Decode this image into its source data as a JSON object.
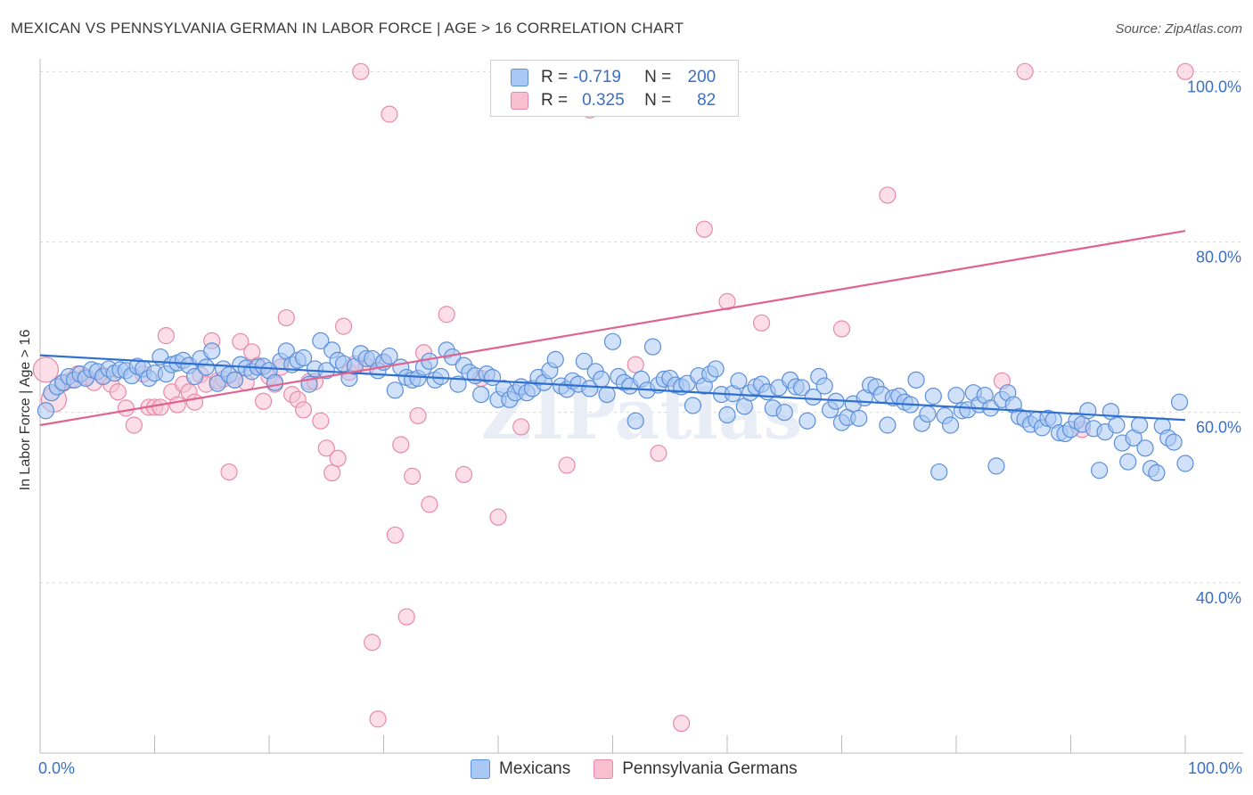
{
  "header": {
    "title": "MEXICAN VS PENNSYLVANIA GERMAN IN LABOR FORCE | AGE > 16 CORRELATION CHART",
    "source": "Source: ZipAtlas.com"
  },
  "legend": {
    "r_label": "R =",
    "n_label": "N =",
    "rows": [
      {
        "r": "-0.719",
        "n": "200",
        "color": "#a9c8f4"
      },
      {
        "r": "0.325",
        "n": "82",
        "color": "#f7bfd0"
      }
    ]
  },
  "colors": {
    "blue_fill": "#a9c8f4",
    "blue_stroke": "#5b8fd8",
    "blue_line": "#2f6fcf",
    "pink_fill": "#f7c3d3",
    "pink_stroke": "#e88aa7",
    "pink_line": "#e0628d",
    "axis_text": "#3b6fc4",
    "grid": "#d8d8d8"
  },
  "chart_data": {
    "type": "scatter",
    "title": "MEXICAN VS PENNSYLVANIA GERMAN IN LABOR FORCE | AGE > 16 CORRELATION CHART",
    "xlabel": "",
    "ylabel": "In Labor Force | Age > 16",
    "x_tick_labels": [
      "0.0%",
      "100.0%"
    ],
    "y_tick_labels": [
      "100.0%",
      "80.0%",
      "60.0%",
      "40.0%"
    ],
    "y_ticks": [
      100,
      80,
      60,
      40
    ],
    "xlim": [
      0,
      100
    ],
    "ylim": [
      20,
      101.5
    ],
    "grid": true,
    "watermark": "ZIPatlas",
    "series": [
      {
        "name": "Mexicans",
        "r": -0.719,
        "n": 200,
        "trend": {
          "x": [
            0,
            100
          ],
          "y": [
            66.7,
            59.1
          ]
        },
        "points": [
          [
            0.5,
            60.2
          ],
          [
            1,
            62.3
          ],
          [
            1.5,
            63.0
          ],
          [
            2,
            63.5
          ],
          [
            2.5,
            64.2
          ],
          [
            3,
            63.8
          ],
          [
            3.5,
            64.5
          ],
          [
            4,
            64.0
          ],
          [
            4.5,
            65.0
          ],
          [
            5,
            64.8
          ],
          [
            5.5,
            64.2
          ],
          [
            6,
            65.1
          ],
          [
            6.5,
            64.6
          ],
          [
            7,
            65.0
          ],
          [
            7.5,
            64.9
          ],
          [
            8,
            64.3
          ],
          [
            8.5,
            65.4
          ],
          [
            9,
            65.1
          ],
          [
            9.5,
            64.0
          ],
          [
            10,
            64.6
          ],
          [
            10.5,
            66.5
          ],
          [
            11,
            64.5
          ],
          [
            11.5,
            65.6
          ],
          [
            12,
            65.8
          ],
          [
            12.5,
            66.1
          ],
          [
            13,
            65.5
          ],
          [
            13.5,
            64.2
          ],
          [
            14,
            66.3
          ],
          [
            14.5,
            65.3
          ],
          [
            15,
            67.2
          ],
          [
            15.5,
            63.4
          ],
          [
            16,
            65.1
          ],
          [
            16.5,
            64.4
          ],
          [
            17,
            63.8
          ],
          [
            17.5,
            65.6
          ],
          [
            18,
            65.2
          ],
          [
            18.5,
            64.8
          ],
          [
            19,
            65.3
          ],
          [
            19.5,
            65.4
          ],
          [
            20,
            64.9
          ],
          [
            20.5,
            63.5
          ],
          [
            21,
            66.0
          ],
          [
            21.5,
            67.2
          ],
          [
            22,
            65.6
          ],
          [
            22.5,
            66.1
          ],
          [
            23,
            66.4
          ],
          [
            23.5,
            63.3
          ],
          [
            24,
            65.1
          ],
          [
            24.5,
            68.4
          ],
          [
            25,
            64.9
          ],
          [
            25.5,
            67.3
          ],
          [
            26,
            66.1
          ],
          [
            26.5,
            65.7
          ],
          [
            27,
            64.0
          ],
          [
            27.5,
            65.4
          ],
          [
            28,
            66.9
          ],
          [
            28.5,
            66.3
          ],
          [
            29,
            66.3
          ],
          [
            29.5,
            64.9
          ],
          [
            30,
            65.9
          ],
          [
            30.5,
            66.6
          ],
          [
            31,
            62.6
          ],
          [
            31.5,
            65.3
          ],
          [
            32,
            64.1
          ],
          [
            32.5,
            63.8
          ],
          [
            33,
            64.0
          ],
          [
            33.5,
            65.3
          ],
          [
            34,
            66.0
          ],
          [
            34.5,
            63.8
          ],
          [
            35,
            64.2
          ],
          [
            35.5,
            67.3
          ],
          [
            36,
            66.5
          ],
          [
            36.5,
            63.3
          ],
          [
            37,
            65.5
          ],
          [
            37.5,
            64.7
          ],
          [
            38,
            64.3
          ],
          [
            38.5,
            62.1
          ],
          [
            39,
            64.5
          ],
          [
            39.5,
            64.1
          ],
          [
            40,
            61.5
          ],
          [
            40.5,
            62.8
          ],
          [
            41,
            61.5
          ],
          [
            41.5,
            62.3
          ],
          [
            42,
            63.0
          ],
          [
            42.5,
            62.3
          ],
          [
            43,
            62.8
          ],
          [
            43.5,
            64.1
          ],
          [
            44,
            63.5
          ],
          [
            44.5,
            64.9
          ],
          [
            45,
            66.2
          ],
          [
            45.5,
            63.1
          ],
          [
            46,
            62.7
          ],
          [
            46.5,
            63.7
          ],
          [
            47,
            63.3
          ],
          [
            47.5,
            66.0
          ],
          [
            48,
            62.8
          ],
          [
            48.5,
            64.8
          ],
          [
            49,
            63.9
          ],
          [
            49.5,
            62.1
          ],
          [
            50,
            68.3
          ],
          [
            50.5,
            64.2
          ],
          [
            51,
            63.5
          ],
          [
            51.5,
            63.1
          ],
          [
            52,
            59.0
          ],
          [
            52.5,
            63.9
          ],
          [
            53,
            62.6
          ],
          [
            53.5,
            67.7
          ],
          [
            54,
            63.2
          ],
          [
            54.5,
            63.9
          ],
          [
            55,
            64.0
          ],
          [
            55.5,
            63.2
          ],
          [
            56,
            63.0
          ],
          [
            56.5,
            63.4
          ],
          [
            57,
            60.8
          ],
          [
            57.5,
            64.3
          ],
          [
            58,
            63.1
          ],
          [
            58.5,
            64.5
          ],
          [
            59,
            65.1
          ],
          [
            59.5,
            62.1
          ],
          [
            60,
            59.7
          ],
          [
            60.5,
            62.2
          ],
          [
            61,
            63.7
          ],
          [
            61.5,
            60.7
          ],
          [
            62,
            62.3
          ],
          [
            62.5,
            63.0
          ],
          [
            63,
            63.3
          ],
          [
            63.5,
            62.4
          ],
          [
            64,
            60.5
          ],
          [
            64.5,
            62.9
          ],
          [
            65,
            60.0
          ],
          [
            65.5,
            63.8
          ],
          [
            66,
            63.0
          ],
          [
            66.5,
            62.9
          ],
          [
            67,
            59.0
          ],
          [
            67.5,
            61.8
          ],
          [
            68,
            64.2
          ],
          [
            68.5,
            63.1
          ],
          [
            69,
            60.3
          ],
          [
            69.5,
            61.3
          ],
          [
            70,
            58.8
          ],
          [
            70.5,
            59.4
          ],
          [
            71,
            61.0
          ],
          [
            71.5,
            59.3
          ],
          [
            72,
            61.7
          ],
          [
            72.5,
            63.2
          ],
          [
            73,
            63.0
          ],
          [
            73.5,
            62.1
          ],
          [
            74,
            58.5
          ],
          [
            74.5,
            61.7
          ],
          [
            75,
            61.9
          ],
          [
            75.5,
            61.2
          ],
          [
            76,
            60.9
          ],
          [
            76.5,
            63.8
          ],
          [
            77,
            58.7
          ],
          [
            77.5,
            59.8
          ],
          [
            78,
            61.9
          ],
          [
            78.5,
            53.0
          ],
          [
            79,
            59.6
          ],
          [
            79.5,
            58.5
          ],
          [
            80,
            62.0
          ],
          [
            80.5,
            60.2
          ],
          [
            81,
            60.3
          ],
          [
            81.5,
            62.3
          ],
          [
            82,
            60.9
          ],
          [
            82.5,
            62.0
          ],
          [
            83,
            60.5
          ],
          [
            83.5,
            53.7
          ],
          [
            84,
            61.5
          ],
          [
            84.5,
            62.3
          ],
          [
            85,
            60.9
          ],
          [
            85.5,
            59.5
          ],
          [
            86,
            59.2
          ],
          [
            86.5,
            58.6
          ],
          [
            87,
            59.1
          ],
          [
            87.5,
            58.2
          ],
          [
            88,
            59.3
          ],
          [
            88.5,
            59.1
          ],
          [
            89,
            57.6
          ],
          [
            89.5,
            57.5
          ],
          [
            90,
            58.0
          ],
          [
            90.5,
            59.0
          ],
          [
            91,
            58.6
          ],
          [
            91.5,
            60.2
          ],
          [
            92,
            58.1
          ],
          [
            92.5,
            53.2
          ],
          [
            93,
            57.7
          ],
          [
            93.5,
            60.1
          ],
          [
            94,
            58.5
          ],
          [
            94.5,
            56.4
          ],
          [
            95,
            54.2
          ],
          [
            95.5,
            57.0
          ],
          [
            96,
            58.5
          ],
          [
            96.5,
            55.8
          ],
          [
            97,
            53.4
          ],
          [
            97.5,
            52.9
          ],
          [
            98,
            58.4
          ],
          [
            98.5,
            57.0
          ],
          [
            99,
            56.5
          ],
          [
            99.5,
            61.2
          ],
          [
            100,
            54.0
          ]
        ]
      },
      {
        "name": "Pennsylvania Germans",
        "r": 0.325,
        "n": 82,
        "trend": {
          "x": [
            0,
            100
          ],
          "y": [
            58.5,
            81.3
          ]
        },
        "points": [
          [
            0.5,
            65.0
          ],
          [
            1.2,
            61.5
          ],
          [
            2,
            63.4
          ],
          [
            2.7,
            63.8
          ],
          [
            3.3,
            64.5
          ],
          [
            4,
            64.2
          ],
          [
            4.7,
            63.5
          ],
          [
            5.5,
            64.3
          ],
          [
            6.2,
            63.3
          ],
          [
            6.8,
            62.4
          ],
          [
            7.5,
            60.5
          ],
          [
            8.2,
            58.5
          ],
          [
            9,
            64.5
          ],
          [
            9.5,
            60.6
          ],
          [
            10,
            60.6
          ],
          [
            10.5,
            60.6
          ],
          [
            11,
            69.0
          ],
          [
            11.5,
            62.4
          ],
          [
            12,
            60.9
          ],
          [
            12.5,
            63.3
          ],
          [
            13,
            62.4
          ],
          [
            13.5,
            61.2
          ],
          [
            14,
            64.4
          ],
          [
            14.5,
            63.3
          ],
          [
            15,
            68.4
          ],
          [
            15.5,
            63.7
          ],
          [
            16,
            63.9
          ],
          [
            16.5,
            53.0
          ],
          [
            17,
            63.8
          ],
          [
            17.5,
            68.3
          ],
          [
            18,
            63.5
          ],
          [
            18.5,
            67.1
          ],
          [
            19,
            65.5
          ],
          [
            19.5,
            61.3
          ],
          [
            20,
            64.2
          ],
          [
            20.5,
            63.3
          ],
          [
            21,
            65.3
          ],
          [
            21.5,
            71.1
          ],
          [
            22,
            62.1
          ],
          [
            22.5,
            61.5
          ],
          [
            23,
            60.3
          ],
          [
            23.5,
            63.6
          ],
          [
            24,
            63.6
          ],
          [
            24.5,
            59.0
          ],
          [
            25,
            55.8
          ],
          [
            25.5,
            52.9
          ],
          [
            26,
            54.6
          ],
          [
            26.5,
            70.1
          ],
          [
            27,
            64.7
          ],
          [
            27.5,
            65.7
          ],
          [
            28,
            100.0
          ],
          [
            28.5,
            65.4
          ],
          [
            29,
            33.0
          ],
          [
            29.5,
            24.0
          ],
          [
            30,
            65.9
          ],
          [
            30.5,
            95.0
          ],
          [
            31,
            45.6
          ],
          [
            31.5,
            56.2
          ],
          [
            32,
            36.0
          ],
          [
            32.5,
            52.5
          ],
          [
            33,
            59.6
          ],
          [
            33.5,
            67.0
          ],
          [
            34,
            49.2
          ],
          [
            35.5,
            71.5
          ],
          [
            37,
            52.7
          ],
          [
            38.5,
            64.0
          ],
          [
            40,
            47.7
          ],
          [
            42,
            58.3
          ],
          [
            46,
            53.8
          ],
          [
            48,
            95.5
          ],
          [
            52,
            65.6
          ],
          [
            54,
            55.2
          ],
          [
            56,
            23.5
          ],
          [
            58,
            81.5
          ],
          [
            60,
            73.0
          ],
          [
            63,
            70.5
          ],
          [
            70,
            69.8
          ],
          [
            74,
            85.5
          ],
          [
            86,
            100.0
          ],
          [
            100,
            100.0
          ],
          [
            84,
            63.7
          ],
          [
            91,
            58.0
          ]
        ]
      }
    ]
  },
  "bottom_legend": [
    {
      "label": "Mexicans",
      "color": "#a9c8f4"
    },
    {
      "label": "Pennsylvania Germans",
      "color": "#f7bfd0"
    }
  ]
}
